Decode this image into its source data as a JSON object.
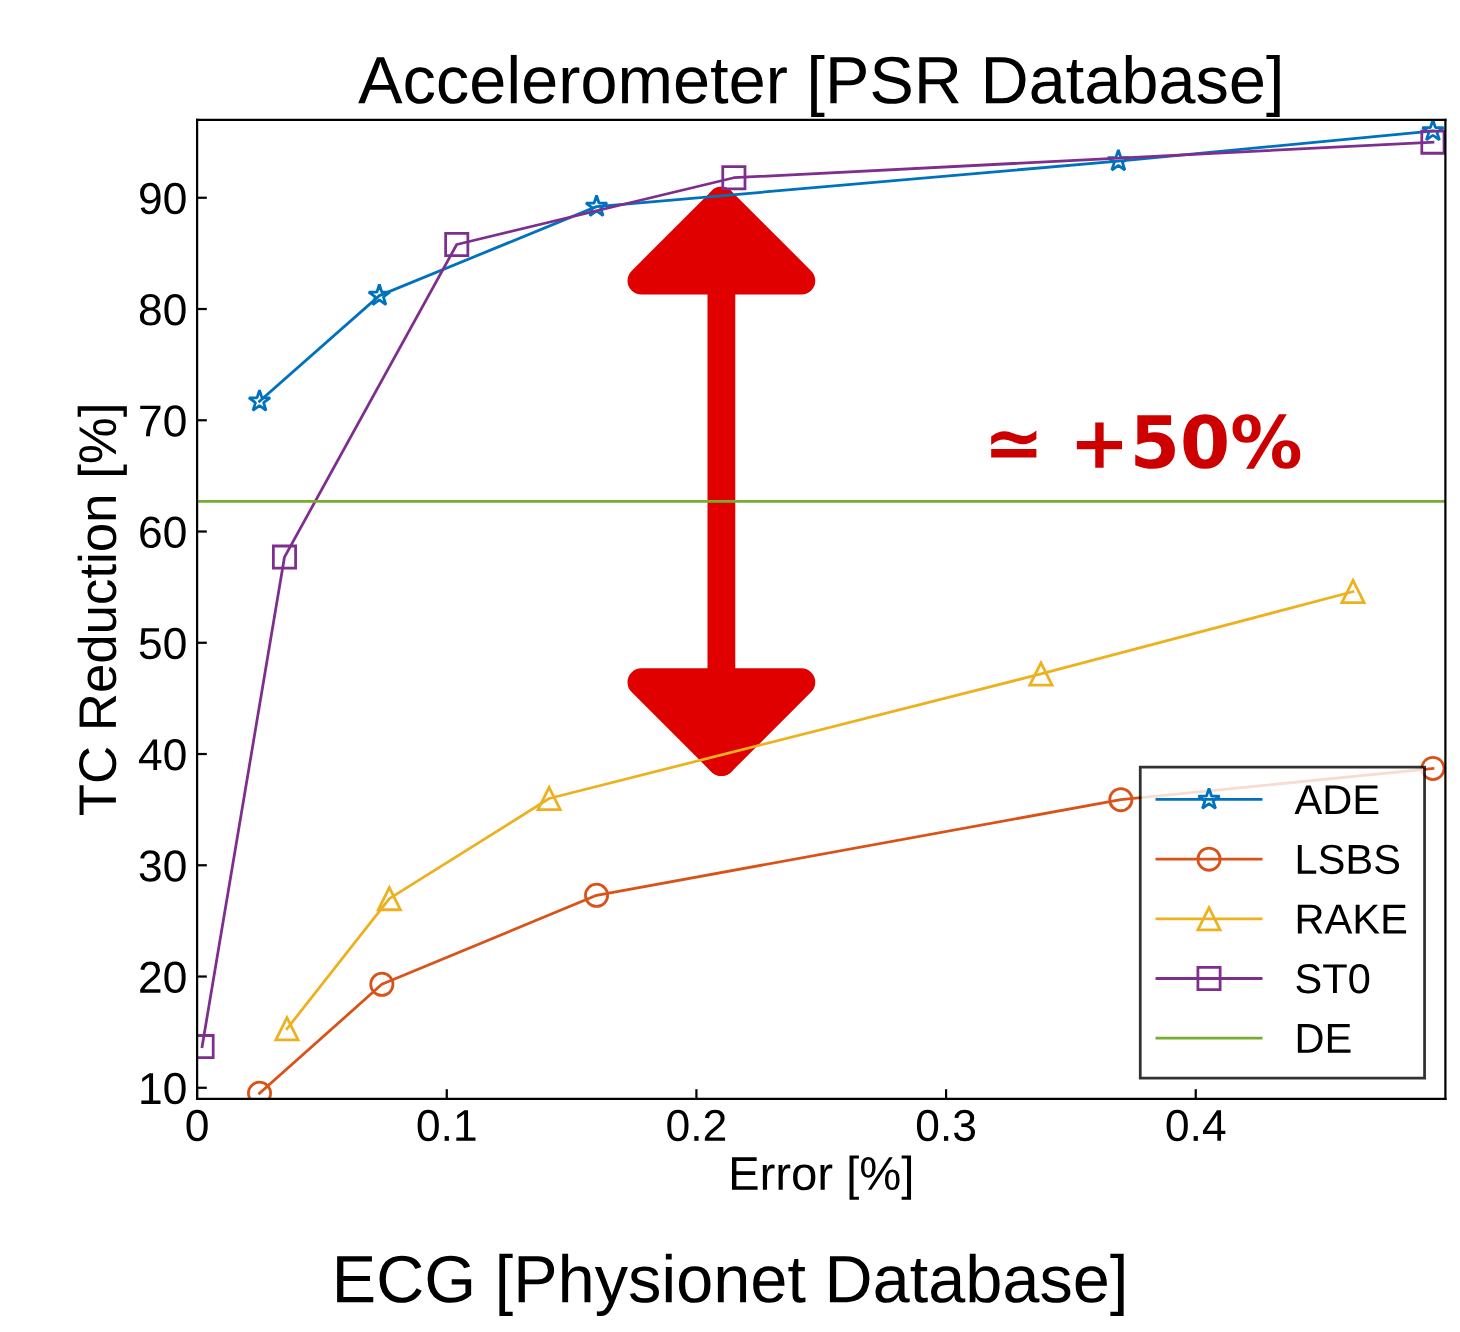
{
  "chart_data": {
    "type": "line",
    "title": "Accelerometer [PSR Database]",
    "xlabel": "Error [%]",
    "ylabel": "TC Reduction [%]",
    "annotations": [
      "ECG [Physionet Database]",
      "≃ +50%"
    ],
    "xlim": [
      0,
      0.5
    ],
    "ylim": [
      9,
      97
    ],
    "xticks": [
      0,
      0.1,
      0.2,
      0.3,
      0.4
    ],
    "yticks": [
      10,
      20,
      30,
      40,
      50,
      60,
      70,
      80,
      90
    ],
    "grid": false,
    "legend": "bottom right",
    "series": [
      {
        "name": "ADE",
        "color": "#0072bd",
        "marker": "star",
        "x": [
          0.025,
          0.073,
          0.16,
          0.369,
          0.495
        ],
        "values": [
          71.7,
          81.2,
          89.2,
          93.3,
          96
        ]
      },
      {
        "name": "LSBS",
        "color": "#d95319",
        "marker": "circle",
        "x": [
          0.025,
          0.074,
          0.16,
          0.37,
          0.495
        ],
        "values": [
          9.5,
          19.3,
          27.3,
          35.9,
          38.7
        ]
      },
      {
        "name": "RAKE",
        "color": "#edb120",
        "marker": "triangle",
        "x": [
          0.036,
          0.077,
          0.141,
          0.338,
          0.463
        ],
        "values": [
          15.3,
          27,
          36,
          47.2,
          54.6
        ]
      },
      {
        "name": "ST0",
        "color": "#7e2f8e",
        "marker": "square",
        "x": [
          0.002,
          0.035,
          0.104,
          0.215,
          0.495
        ],
        "values": [
          13.7,
          57.7,
          85.8,
          91.8,
          95
        ]
      },
      {
        "name": "DE",
        "color": "#77ac30",
        "marker": "none",
        "x": [
          0,
          0.5
        ],
        "values": [
          62.7,
          62.7
        ]
      }
    ]
  }
}
